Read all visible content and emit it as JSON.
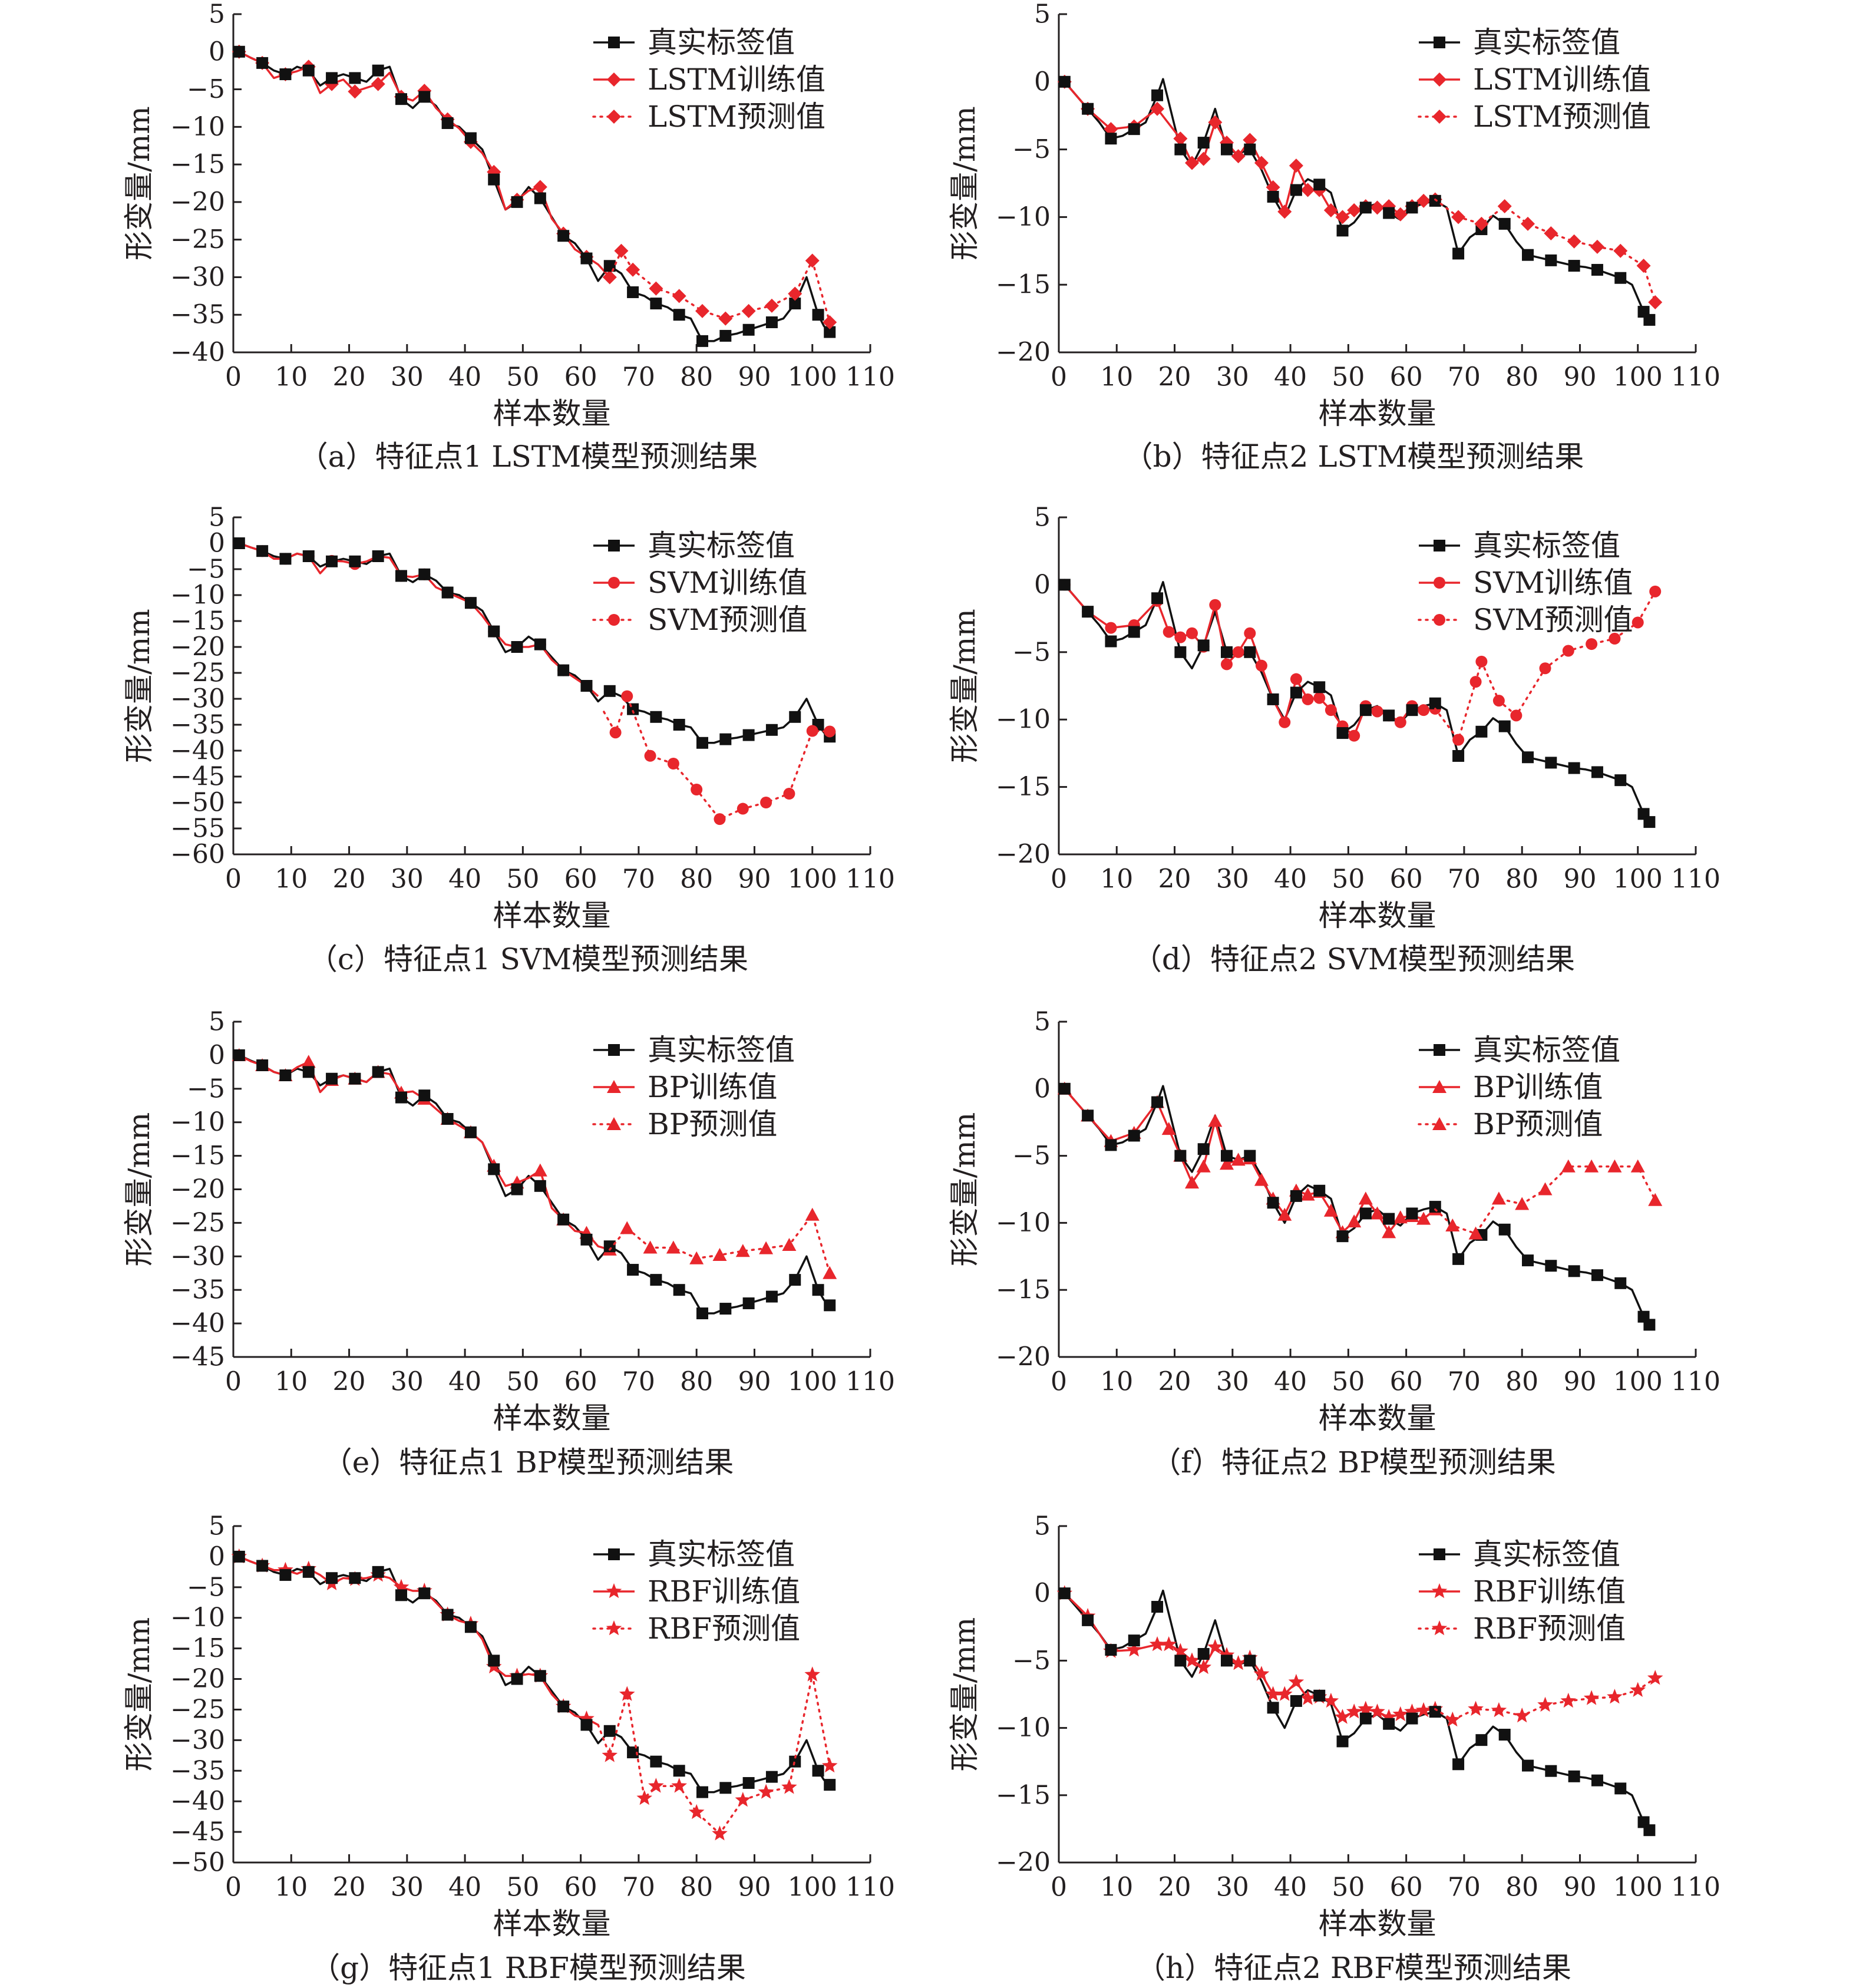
{
  "figure": {
    "background": "#ffffff"
  },
  "style": {
    "real_color": "#111111",
    "model_color": "#e8262c",
    "axis_color": "#231f20"
  },
  "icons": {
    "real": "square-marker",
    "LSTM": "diamond-marker",
    "SVM": "circle-marker",
    "BP": "triangle-marker",
    "RBF": "star-marker"
  },
  "real_series": {
    "p1_x": [
      1,
      5,
      9,
      13,
      17,
      21,
      25,
      29,
      33,
      37,
      41,
      45,
      49,
      53,
      57,
      61,
      65,
      69,
      73,
      77,
      81,
      85,
      89,
      93,
      97,
      101,
      103
    ],
    "p1_y": [
      0,
      -1.5,
      -3,
      -2.5,
      -3.5,
      -3.5,
      -2.5,
      -6.3,
      -6,
      -9.5,
      -11.5,
      -17,
      -20,
      -19.5,
      -24.5,
      -27.5,
      -28.5,
      -32,
      -33.5,
      -35,
      -38.5,
      -37.8,
      -37,
      -36,
      -33.5,
      -35,
      -37.3
    ],
    "p1_mid_x": [
      3,
      7,
      11,
      15,
      19,
      23,
      27,
      31,
      35,
      39,
      43,
      47,
      51,
      55,
      59,
      63,
      67,
      71,
      75,
      79,
      83,
      87,
      91,
      95,
      99,
      102
    ],
    "p1_mid_y": [
      -0.8,
      -2.5,
      -2,
      -4.5,
      -3,
      -4,
      -2,
      -7.5,
      -7.2,
      -10,
      -13,
      -21,
      -18,
      -22,
      -25.5,
      -30.5,
      -29.5,
      -32.5,
      -34,
      -35.5,
      -38.5,
      -37.5,
      -36.5,
      -35.5,
      -30,
      -36.5
    ],
    "p2_x": [
      1,
      5,
      9,
      13,
      17,
      21,
      25,
      29,
      33,
      37,
      41,
      45,
      49,
      53,
      57,
      61,
      65,
      69,
      73,
      77,
      81,
      85,
      89,
      93,
      97,
      101,
      102
    ],
    "p2_y": [
      0,
      -2,
      -4.2,
      -3.5,
      -1,
      -5,
      -4.5,
      -5,
      -5,
      -8.5,
      -8,
      -7.6,
      -11,
      -9.3,
      -9.7,
      -9.3,
      -8.8,
      -12.7,
      -10.9,
      -10.5,
      -12.8,
      -13.2,
      -13.6,
      -13.9,
      -14.5,
      -17,
      -17.6
    ],
    "p2_mid_x": [
      3,
      7,
      11,
      15,
      18,
      23,
      27,
      31,
      35,
      39,
      43,
      47,
      51,
      55,
      59,
      63,
      67,
      71,
      75,
      79,
      83,
      87,
      91,
      95,
      99
    ],
    "p2_mid_y": [
      -1,
      -3,
      -4,
      -3,
      0.2,
      -6.2,
      -2,
      -5.3,
      -6.5,
      -10,
      -7.2,
      -8.2,
      -10.4,
      -9,
      -10.2,
      -9,
      -9.3,
      -11.5,
      -9.9,
      -11.8,
      -13,
      -13.4,
      -13.7,
      -14.2,
      -15
    ]
  },
  "chart_data": [
    {
      "id": "a",
      "type": "line",
      "caption": "（a）特征点1 LSTM模型预测结果",
      "xlabel": "样本数量",
      "ylabel": "形变量/mm",
      "xlim": [
        0,
        110
      ],
      "ylim": [
        -40,
        5
      ],
      "yticks": [
        5,
        0,
        -5,
        -10,
        -15,
        -20,
        -25,
        -30,
        -35,
        -40
      ],
      "xticks": [
        0,
        10,
        20,
        30,
        40,
        50,
        60,
        70,
        80,
        90,
        100,
        110
      ],
      "marker": "diamond",
      "point": 1,
      "legend": [
        "真实标签值",
        "LSTM训练值",
        "LSTM预测值"
      ],
      "train_x": [
        1,
        3,
        5,
        7,
        9,
        11,
        13,
        15,
        17,
        19,
        21,
        23,
        25,
        27,
        29,
        31,
        33,
        35,
        37,
        39,
        41,
        43,
        45,
        47,
        49,
        51,
        53,
        55,
        57,
        59,
        61,
        63,
        65
      ],
      "train_y": [
        0,
        -0.8,
        -1.5,
        -3.5,
        -3,
        -2.6,
        -2,
        -5.5,
        -4.3,
        -3.7,
        -5.3,
        -4.8,
        -4.3,
        -2.8,
        -6,
        -6.5,
        -5.2,
        -7.5,
        -9,
        -10.2,
        -12,
        -13.5,
        -16,
        -21,
        -19.7,
        -18.5,
        -18,
        -22.2,
        -24.2,
        -26.3,
        -27.3,
        -28.3,
        -30
      ],
      "pred_x": [
        65,
        67,
        69,
        73,
        77,
        81,
        85,
        89,
        93,
        97,
        100,
        103
      ],
      "pred_y": [
        -30,
        -26.5,
        -29,
        -31.5,
        -32.5,
        -34.5,
        -35.5,
        -34.5,
        -33.8,
        -32.2,
        -27.8,
        -36
      ]
    },
    {
      "id": "b",
      "type": "line",
      "caption": "（b）特征点2 LSTM模型预测结果",
      "xlabel": "样本数量",
      "ylabel": "形变量/mm",
      "xlim": [
        0,
        110
      ],
      "ylim": [
        -20,
        5
      ],
      "yticks": [
        5,
        0,
        -5,
        -10,
        -15,
        -20
      ],
      "xticks": [
        0,
        10,
        20,
        30,
        40,
        50,
        60,
        70,
        80,
        90,
        100,
        110
      ],
      "marker": "diamond",
      "point": 2,
      "legend": [
        "真实标签值",
        "LSTM训练值",
        "LSTM预测值"
      ],
      "train_x": [
        1,
        5,
        9,
        13,
        17,
        21,
        23,
        25,
        27,
        29,
        31,
        33,
        35,
        37,
        39,
        41,
        43,
        45,
        47,
        49,
        51,
        53,
        55,
        57,
        59,
        61,
        63,
        65
      ],
      "train_y": [
        0,
        -2,
        -3.5,
        -3.3,
        -2,
        -4.2,
        -6,
        -5.7,
        -3,
        -4.5,
        -5.5,
        -4.3,
        -6,
        -7.8,
        -9.6,
        -6.2,
        -8,
        -8,
        -9.5,
        -10,
        -9.5,
        -9.2,
        -9.3,
        -9.2,
        -9.8,
        -9.2,
        -8.8,
        -8.7
      ],
      "pred_x": [
        65,
        69,
        73,
        77,
        81,
        85,
        89,
        93,
        97,
        101,
        103
      ],
      "pred_y": [
        -8.7,
        -10,
        -10.5,
        -9.2,
        -10.5,
        -11.2,
        -11.8,
        -12.2,
        -12.5,
        -13.6,
        -16.3
      ]
    },
    {
      "id": "c",
      "type": "line",
      "caption": "（c）特征点1 SVM模型预测结果",
      "xlabel": "样本数量",
      "ylabel": "形变量/mm",
      "xlim": [
        0,
        110
      ],
      "ylim": [
        -60,
        5
      ],
      "yticks": [
        5,
        0,
        -5,
        -10,
        -15,
        -20,
        -25,
        -30,
        -35,
        -40,
        -45,
        -50,
        -55,
        -60
      ],
      "xticks": [
        0,
        10,
        20,
        30,
        40,
        50,
        60,
        70,
        80,
        90,
        100,
        110
      ],
      "marker": "circle",
      "point": 1,
      "legend": [
        "真实标签值",
        "SVM训练值",
        "SVM预测值"
      ],
      "train_x": [
        1,
        3,
        5,
        7,
        9,
        11,
        13,
        15,
        17,
        19,
        21,
        23,
        25,
        27,
        29,
        31,
        33,
        35,
        37,
        39,
        41,
        43,
        45,
        47,
        49,
        51,
        53,
        55,
        57,
        59,
        61,
        63
      ],
      "train_y": [
        0,
        -0.8,
        -1.5,
        -3,
        -3,
        -2,
        -2.5,
        -5.8,
        -3.4,
        -3.5,
        -4,
        -3.5,
        -2.5,
        -2.8,
        -6.3,
        -6.5,
        -6,
        -8.5,
        -9.5,
        -10.5,
        -11.5,
        -14,
        -17,
        -19.5,
        -20,
        -20,
        -19.5,
        -22.5,
        -24.5,
        -26,
        -27.5,
        -29.5
      ],
      "pred_x": [
        64,
        66,
        68,
        72,
        76,
        80,
        84,
        88,
        92,
        96,
        100,
        103
      ],
      "pred_y": [
        -32.5,
        -36.5,
        -29.5,
        -41,
        -42.5,
        -47.5,
        -53.2,
        -51.2,
        -50,
        -48.3,
        -36.2,
        -36.3
      ]
    },
    {
      "id": "d",
      "type": "line",
      "caption": "（d）特征点2 SVM模型预测结果",
      "xlabel": "样本数量",
      "ylabel": "形变量/mm",
      "xlim": [
        0,
        110
      ],
      "ylim": [
        -20,
        5
      ],
      "yticks": [
        5,
        0,
        -5,
        -10,
        -15,
        -20
      ],
      "xticks": [
        0,
        10,
        20,
        30,
        40,
        50,
        60,
        70,
        80,
        90,
        100,
        110
      ],
      "marker": "circle",
      "point": 2,
      "legend": [
        "真实标签值",
        "SVM训练值",
        "SVM预测值"
      ],
      "train_x": [
        1,
        5,
        9,
        13,
        17,
        19,
        21,
        23,
        25,
        27,
        29,
        31,
        33,
        35,
        37,
        39,
        41,
        43,
        45,
        47,
        49,
        51,
        53,
        55,
        57,
        59,
        61,
        63,
        65
      ],
      "train_y": [
        0,
        -2,
        -3.2,
        -3,
        -1.2,
        -3.5,
        -3.9,
        -3.6,
        -4.6,
        -1.5,
        -5.9,
        -5,
        -3.6,
        -6,
        -8.5,
        -10.2,
        -7,
        -8.5,
        -8.4,
        -9.3,
        -10.5,
        -11.2,
        -9,
        -9.4,
        -9.7,
        -10.2,
        -9,
        -9.3,
        -9.2
      ],
      "pred_x": [
        65,
        69,
        72,
        73,
        76,
        79,
        84,
        88,
        92,
        96,
        100,
        103
      ],
      "pred_y": [
        -9.2,
        -11.5,
        -7.2,
        -5.7,
        -8.6,
        -9.7,
        -6.2,
        -4.9,
        -4.4,
        -4,
        -2.8,
        -0.5
      ]
    },
    {
      "id": "e",
      "type": "line",
      "caption": "（e）特征点1 BP模型预测结果",
      "xlabel": "样本数量",
      "ylabel": "形变量/mm",
      "xlim": [
        0,
        110
      ],
      "ylim": [
        -45,
        5
      ],
      "yticks": [
        5,
        0,
        -5,
        -10,
        -15,
        -20,
        -25,
        -30,
        -35,
        -40,
        -45
      ],
      "xticks": [
        0,
        10,
        20,
        30,
        40,
        50,
        60,
        70,
        80,
        90,
        100,
        110
      ],
      "marker": "triangle",
      "point": 1,
      "legend": [
        "真实标签值",
        "BP训练值",
        "BP预测值"
      ],
      "train_x": [
        1,
        3,
        5,
        7,
        9,
        11,
        13,
        15,
        17,
        19,
        21,
        23,
        25,
        27,
        29,
        31,
        33,
        35,
        37,
        39,
        41,
        43,
        45,
        47,
        49,
        51,
        53,
        55,
        57,
        59,
        61,
        63,
        65
      ],
      "train_y": [
        0,
        -0.9,
        -1.5,
        -2.5,
        -3,
        -1.8,
        -1,
        -5.5,
        -3.7,
        -3,
        -3.5,
        -4,
        -2.5,
        -2.8,
        -5.6,
        -5.4,
        -6.5,
        -8,
        -9.5,
        -10.5,
        -11.5,
        -13,
        -16.5,
        -19.5,
        -19,
        -18.3,
        -17.2,
        -22.8,
        -24.5,
        -26.2,
        -26.5,
        -28.5,
        -29
      ],
      "pred_x": [
        65,
        68,
        72,
        76,
        80,
        84,
        88,
        92,
        96,
        100,
        103
      ],
      "pred_y": [
        -29,
        -25.8,
        -28.7,
        -28.7,
        -30.3,
        -29.8,
        -29.2,
        -28.8,
        -28.3,
        -23.8,
        -32.5
      ]
    },
    {
      "id": "f",
      "type": "line",
      "caption": "（f）特征点2 BP模型预测结果",
      "xlabel": "样本数量",
      "ylabel": "形变量/mm",
      "xlim": [
        0,
        110
      ],
      "ylim": [
        -20,
        5
      ],
      "yticks": [
        5,
        0,
        -5,
        -10,
        -15,
        -20
      ],
      "xticks": [
        0,
        10,
        20,
        30,
        40,
        50,
        60,
        70,
        80,
        90,
        100,
        110
      ],
      "marker": "triangle",
      "point": 2,
      "legend": [
        "真实标签值",
        "BP训练值",
        "BP预测值"
      ],
      "train_x": [
        1,
        5,
        9,
        13,
        17,
        19,
        21,
        23,
        25,
        27,
        29,
        31,
        33,
        35,
        37,
        39,
        41,
        43,
        45,
        47,
        49,
        51,
        53,
        55,
        57,
        59,
        61,
        63,
        65
      ],
      "train_y": [
        0,
        -2,
        -3.9,
        -3.3,
        -1,
        -3,
        -5,
        -7,
        -5.8,
        -2.4,
        -5.6,
        -5.3,
        -5.2,
        -6.8,
        -8.2,
        -9.4,
        -7.6,
        -7.9,
        -7.7,
        -9.1,
        -10.7,
        -9.9,
        -8.2,
        -9.3,
        -10.7,
        -9.6,
        -9.5,
        -9.7,
        -9
      ],
      "pred_x": [
        65,
        68,
        72,
        76,
        80,
        84,
        88,
        92,
        96,
        100,
        103
      ],
      "pred_y": [
        -9,
        -10.2,
        -10.8,
        -8.2,
        -8.6,
        -7.5,
        -5.8,
        -5.8,
        -5.8,
        -5.8,
        -8.3
      ]
    },
    {
      "id": "g",
      "type": "line",
      "caption": "（g）特征点1 RBF模型预测结果",
      "xlabel": "样本数量",
      "ylabel": "形变量/mm",
      "xlim": [
        0,
        110
      ],
      "ylim": [
        -50,
        5
      ],
      "yticks": [
        5,
        0,
        -5,
        -10,
        -15,
        -20,
        -25,
        -30,
        -35,
        -40,
        -45,
        -50
      ],
      "xticks": [
        0,
        10,
        20,
        30,
        40,
        50,
        60,
        70,
        80,
        90,
        100,
        110
      ],
      "marker": "star",
      "point": 1,
      "legend": [
        "真实标签值",
        "RBF训练值",
        "RBF预测值"
      ],
      "train_x": [
        1,
        3,
        5,
        7,
        9,
        11,
        13,
        15,
        17,
        19,
        21,
        23,
        25,
        27,
        29,
        31,
        33,
        35,
        37,
        39,
        41,
        43,
        45,
        47,
        49,
        51,
        53,
        55,
        57,
        59,
        61,
        63
      ],
      "train_y": [
        0,
        -0.8,
        -1.5,
        -2.2,
        -2.2,
        -2.8,
        -2,
        -3,
        -4.4,
        -3.5,
        -3.7,
        -3.5,
        -3,
        -3.5,
        -5,
        -5.6,
        -5.6,
        -7.5,
        -9.5,
        -10.5,
        -11,
        -13.5,
        -18,
        -19.5,
        -19.5,
        -19.2,
        -19.5,
        -22.5,
        -24.5,
        -26,
        -26.5,
        -27.5
      ],
      "pred_x": [
        63,
        65,
        68,
        71,
        73,
        77,
        80,
        84,
        88,
        92,
        96,
        100,
        103
      ],
      "pred_y": [
        -27.5,
        -32.5,
        -22.5,
        -39.5,
        -37.5,
        -37.5,
        -41.8,
        -45.3,
        -39.8,
        -38.5,
        -37.7,
        -19.3,
        -34.2
      ]
    },
    {
      "id": "h",
      "type": "line",
      "caption": "（h）特征点2 RBF模型预测结果",
      "xlabel": "样本数量",
      "ylabel": "形变量/mm",
      "xlim": [
        0,
        110
      ],
      "ylim": [
        -20,
        5
      ],
      "yticks": [
        5,
        0,
        -5,
        -10,
        -15,
        -20
      ],
      "xticks": [
        0,
        10,
        20,
        30,
        40,
        50,
        60,
        70,
        80,
        90,
        100,
        110
      ],
      "marker": "star",
      "point": 2,
      "legend": [
        "真实标签值",
        "RBF训练值",
        "RBF预测值"
      ],
      "train_x": [
        1,
        5,
        9,
        13,
        17,
        19,
        21,
        23,
        25,
        27,
        29,
        31,
        33,
        35,
        37,
        39,
        41,
        43,
        45,
        47,
        49,
        51,
        53,
        55,
        57,
        59,
        61,
        63,
        65
      ],
      "train_y": [
        0,
        -1.7,
        -4.3,
        -4.2,
        -3.8,
        -3.8,
        -4.3,
        -5,
        -5.5,
        -4,
        -4.6,
        -5.2,
        -4.8,
        -6,
        -7.5,
        -7.5,
        -6.6,
        -7.8,
        -7.7,
        -8,
        -9.2,
        -8.8,
        -8.6,
        -8.8,
        -9.2,
        -9,
        -8.8,
        -8.7,
        -8.6
      ],
      "pred_x": [
        65,
        68,
        72,
        76,
        80,
        84,
        88,
        92,
        96,
        100,
        103
      ],
      "pred_y": [
        -8.6,
        -9.4,
        -8.6,
        -8.7,
        -9.1,
        -8.3,
        -8,
        -7.8,
        -7.7,
        -7.2,
        -6.3
      ]
    }
  ]
}
